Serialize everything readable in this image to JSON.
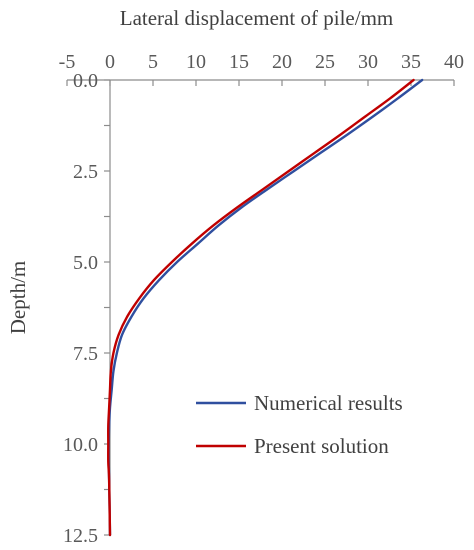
{
  "chart_data": {
    "type": "line",
    "title": "",
    "xlabel": "Lateral displacement of pile/mm",
    "ylabel": "Depth/m",
    "xlim": [
      -5,
      40
    ],
    "ylim": [
      0,
      12.5
    ],
    "x_axis_position": "top",
    "y_inverted": true,
    "x_ticks": [
      -5,
      0,
      5,
      10,
      15,
      20,
      25,
      30,
      35,
      40
    ],
    "x_tick_labels": [
      "-5",
      "0",
      "5",
      "10",
      "15",
      "20",
      "25",
      "30",
      "35",
      "40"
    ],
    "y_ticks": [
      0,
      2.5,
      5,
      7.5,
      10,
      12.5
    ],
    "y_tick_labels": [
      "0.0",
      "2.5",
      "5.0",
      "7.5",
      "10.0",
      "12.5"
    ],
    "grid": false,
    "legend_position": "bottom-right",
    "series": [
      {
        "name": "Numerical results",
        "color": "#2F4F9F",
        "x": [
          36.3,
          33.5,
          30.6,
          27.6,
          24.5,
          21.4,
          18.3,
          15.3,
          12.6,
          10.2,
          7.8,
          5.7,
          3.9,
          2.5,
          1.4,
          0.8,
          0.4,
          0.2,
          0.0,
          -0.1,
          -0.15,
          -0.15,
          -0.1,
          0.0
        ],
        "y": [
          0.0,
          0.5,
          1.0,
          1.5,
          2.0,
          2.5,
          3.0,
          3.5,
          4.0,
          4.5,
          5.0,
          5.5,
          6.0,
          6.5,
          7.0,
          7.5,
          8.0,
          8.5,
          9.0,
          9.5,
          10.0,
          10.5,
          11.0,
          12.5
        ]
      },
      {
        "name": "Present solution",
        "color": "#C00000",
        "x": [
          35.3,
          32.6,
          29.7,
          26.8,
          23.8,
          20.8,
          17.8,
          14.8,
          12.0,
          9.5,
          7.2,
          5.1,
          3.4,
          2.0,
          1.0,
          0.4,
          0.1,
          0.0,
          -0.1,
          -0.2,
          -0.2,
          -0.2,
          -0.1,
          0.0
        ],
        "y": [
          0.0,
          0.5,
          1.0,
          1.5,
          2.0,
          2.5,
          3.0,
          3.5,
          4.0,
          4.5,
          5.0,
          5.5,
          6.0,
          6.5,
          7.0,
          7.5,
          8.0,
          8.5,
          9.0,
          9.5,
          10.0,
          10.5,
          11.0,
          12.5
        ]
      }
    ]
  }
}
